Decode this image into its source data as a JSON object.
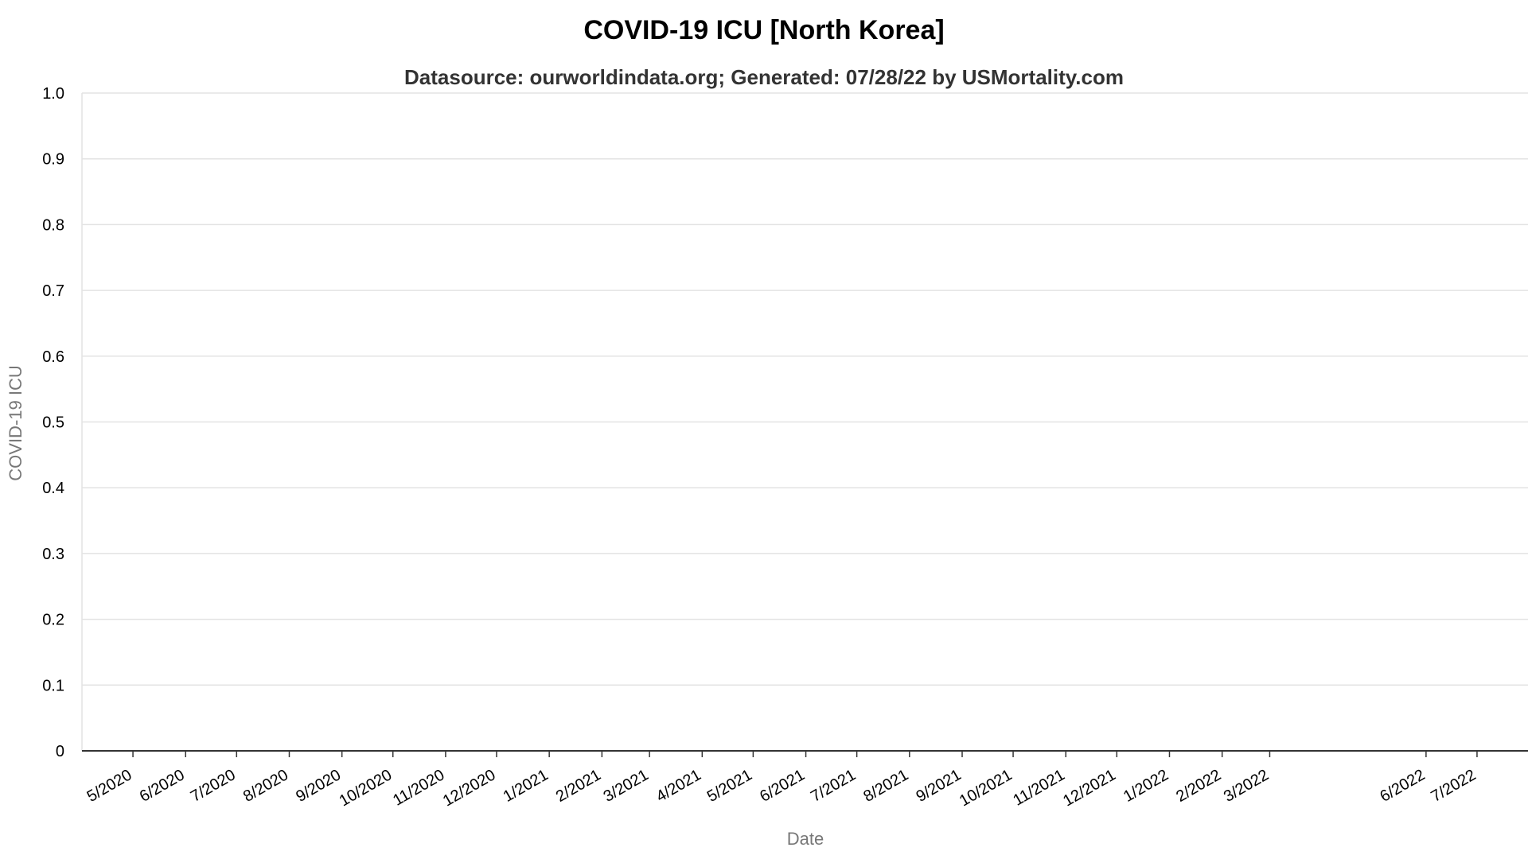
{
  "chart_data": {
    "type": "line",
    "title": "COVID-19 ICU [North Korea]",
    "subtitle": "Datasource: ourworldindata.org; Generated: 07/28/22 by USMortality.com",
    "xlabel": "Date",
    "ylabel": "COVID-19 ICU",
    "ylim": [
      0,
      1
    ],
    "yticks": [
      "0",
      "0.1",
      "0.2",
      "0.3",
      "0.4",
      "0.5",
      "0.6",
      "0.7",
      "0.8",
      "0.9",
      "1.0"
    ],
    "xlim": [
      "2020-04-01",
      "2022-07-31"
    ],
    "xticks": [
      {
        "label": "5/2020",
        "date": "2020-05-01"
      },
      {
        "label": "6/2020",
        "date": "2020-06-01"
      },
      {
        "label": "7/2020",
        "date": "2020-07-01"
      },
      {
        "label": "8/2020",
        "date": "2020-08-01"
      },
      {
        "label": "9/2020",
        "date": "2020-09-01"
      },
      {
        "label": "10/2020",
        "date": "2020-10-01"
      },
      {
        "label": "11/2020",
        "date": "2020-11-01"
      },
      {
        "label": "12/2020",
        "date": "2020-12-01"
      },
      {
        "label": "1/2021",
        "date": "2021-01-01"
      },
      {
        "label": "2/2021",
        "date": "2021-02-01"
      },
      {
        "label": "3/2021",
        "date": "2021-03-01"
      },
      {
        "label": "4/2021",
        "date": "2021-04-01"
      },
      {
        "label": "5/2021",
        "date": "2021-05-01"
      },
      {
        "label": "6/2021",
        "date": "2021-06-01"
      },
      {
        "label": "7/2021",
        "date": "2021-07-01"
      },
      {
        "label": "8/2021",
        "date": "2021-08-01"
      },
      {
        "label": "9/2021",
        "date": "2021-09-01"
      },
      {
        "label": "10/2021",
        "date": "2021-10-01"
      },
      {
        "label": "11/2021",
        "date": "2021-11-01"
      },
      {
        "label": "12/2021",
        "date": "2021-12-01"
      },
      {
        "label": "1/2022",
        "date": "2022-01-01"
      },
      {
        "label": "2/2022",
        "date": "2022-02-01"
      },
      {
        "label": "3/2022",
        "date": "2022-03-01"
      },
      {
        "label": "6/2022",
        "date": "2022-06-01"
      },
      {
        "label": "7/2022",
        "date": "2022-07-01"
      }
    ],
    "series": [],
    "grid": true,
    "colors": {
      "grid": "#e3e3e3",
      "baseline": "#333333",
      "axis_label": "#777777"
    }
  }
}
